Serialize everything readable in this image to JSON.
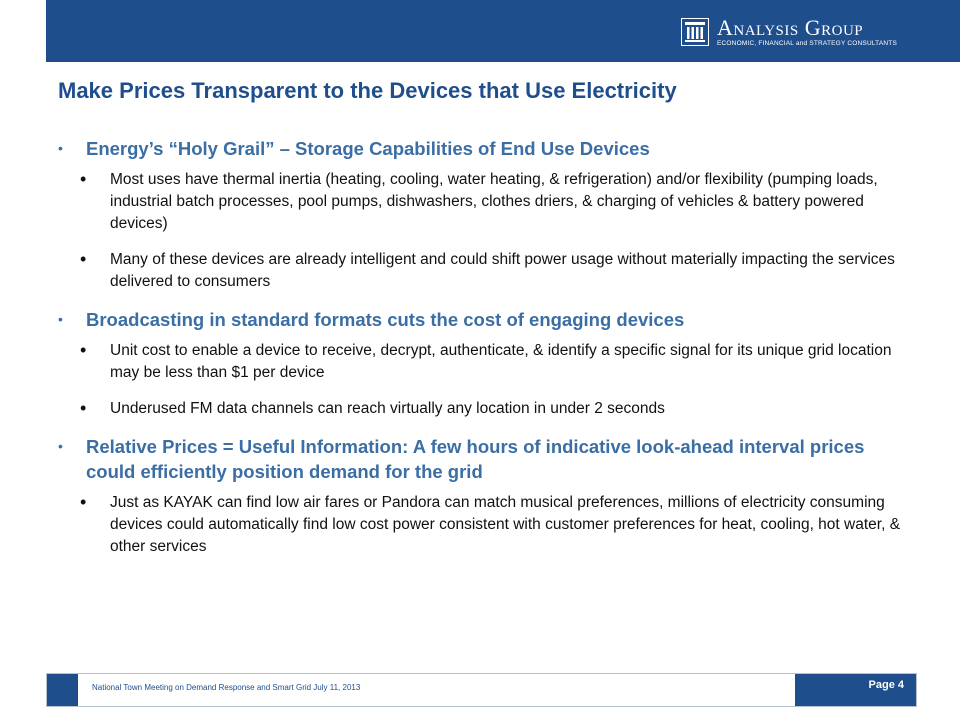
{
  "header": {
    "logo": {
      "name": "Analysis Group",
      "tagline": "ECONOMIC, FINANCIAL and STRATEGY CONSULTANTS",
      "icon": "building-columns-icon"
    }
  },
  "slide": {
    "title": "Make Prices Transparent to the Devices that Use Electricity",
    "sections": [
      {
        "heading": "Energy’s “Holy Grail” – Storage Capabilities of End Use Devices",
        "bullets": [
          "Most uses have thermal inertia (heating, cooling, water heating, & refrigeration) and/or flexibility (pumping loads, industrial batch processes, pool pumps, dishwashers, clothes driers, & charging of vehicles & battery powered devices)",
          "Many of these devices are already intelligent and could shift power usage without materially impacting the services delivered to consumers"
        ]
      },
      {
        "heading": "Broadcasting in standard formats cuts the cost of engaging devices",
        "bullets": [
          "Unit cost to enable a device to receive, decrypt, authenticate, & identify a specific signal for its unique grid location may be less than $1 per device",
          "Underused FM data channels can reach virtually any location in under 2 seconds"
        ]
      },
      {
        "heading": "Relative Prices = Useful Information: A few hours of indicative look-ahead interval prices could efficiently position demand for the grid",
        "bullets": [
          "Just as KAYAK can find low air fares or Pandora can match musical preferences, millions of electricity consuming devices could automatically find low cost power consistent with customer preferences for heat, cooling, hot water, & other services"
        ]
      }
    ]
  },
  "footer": {
    "event": "National Town Meeting on Demand Response and Smart Grid  July 11, 2013",
    "page": "Page 4"
  },
  "colors": {
    "brand_blue": "#1f4e8c",
    "heading_blue": "#3a6ea5"
  }
}
